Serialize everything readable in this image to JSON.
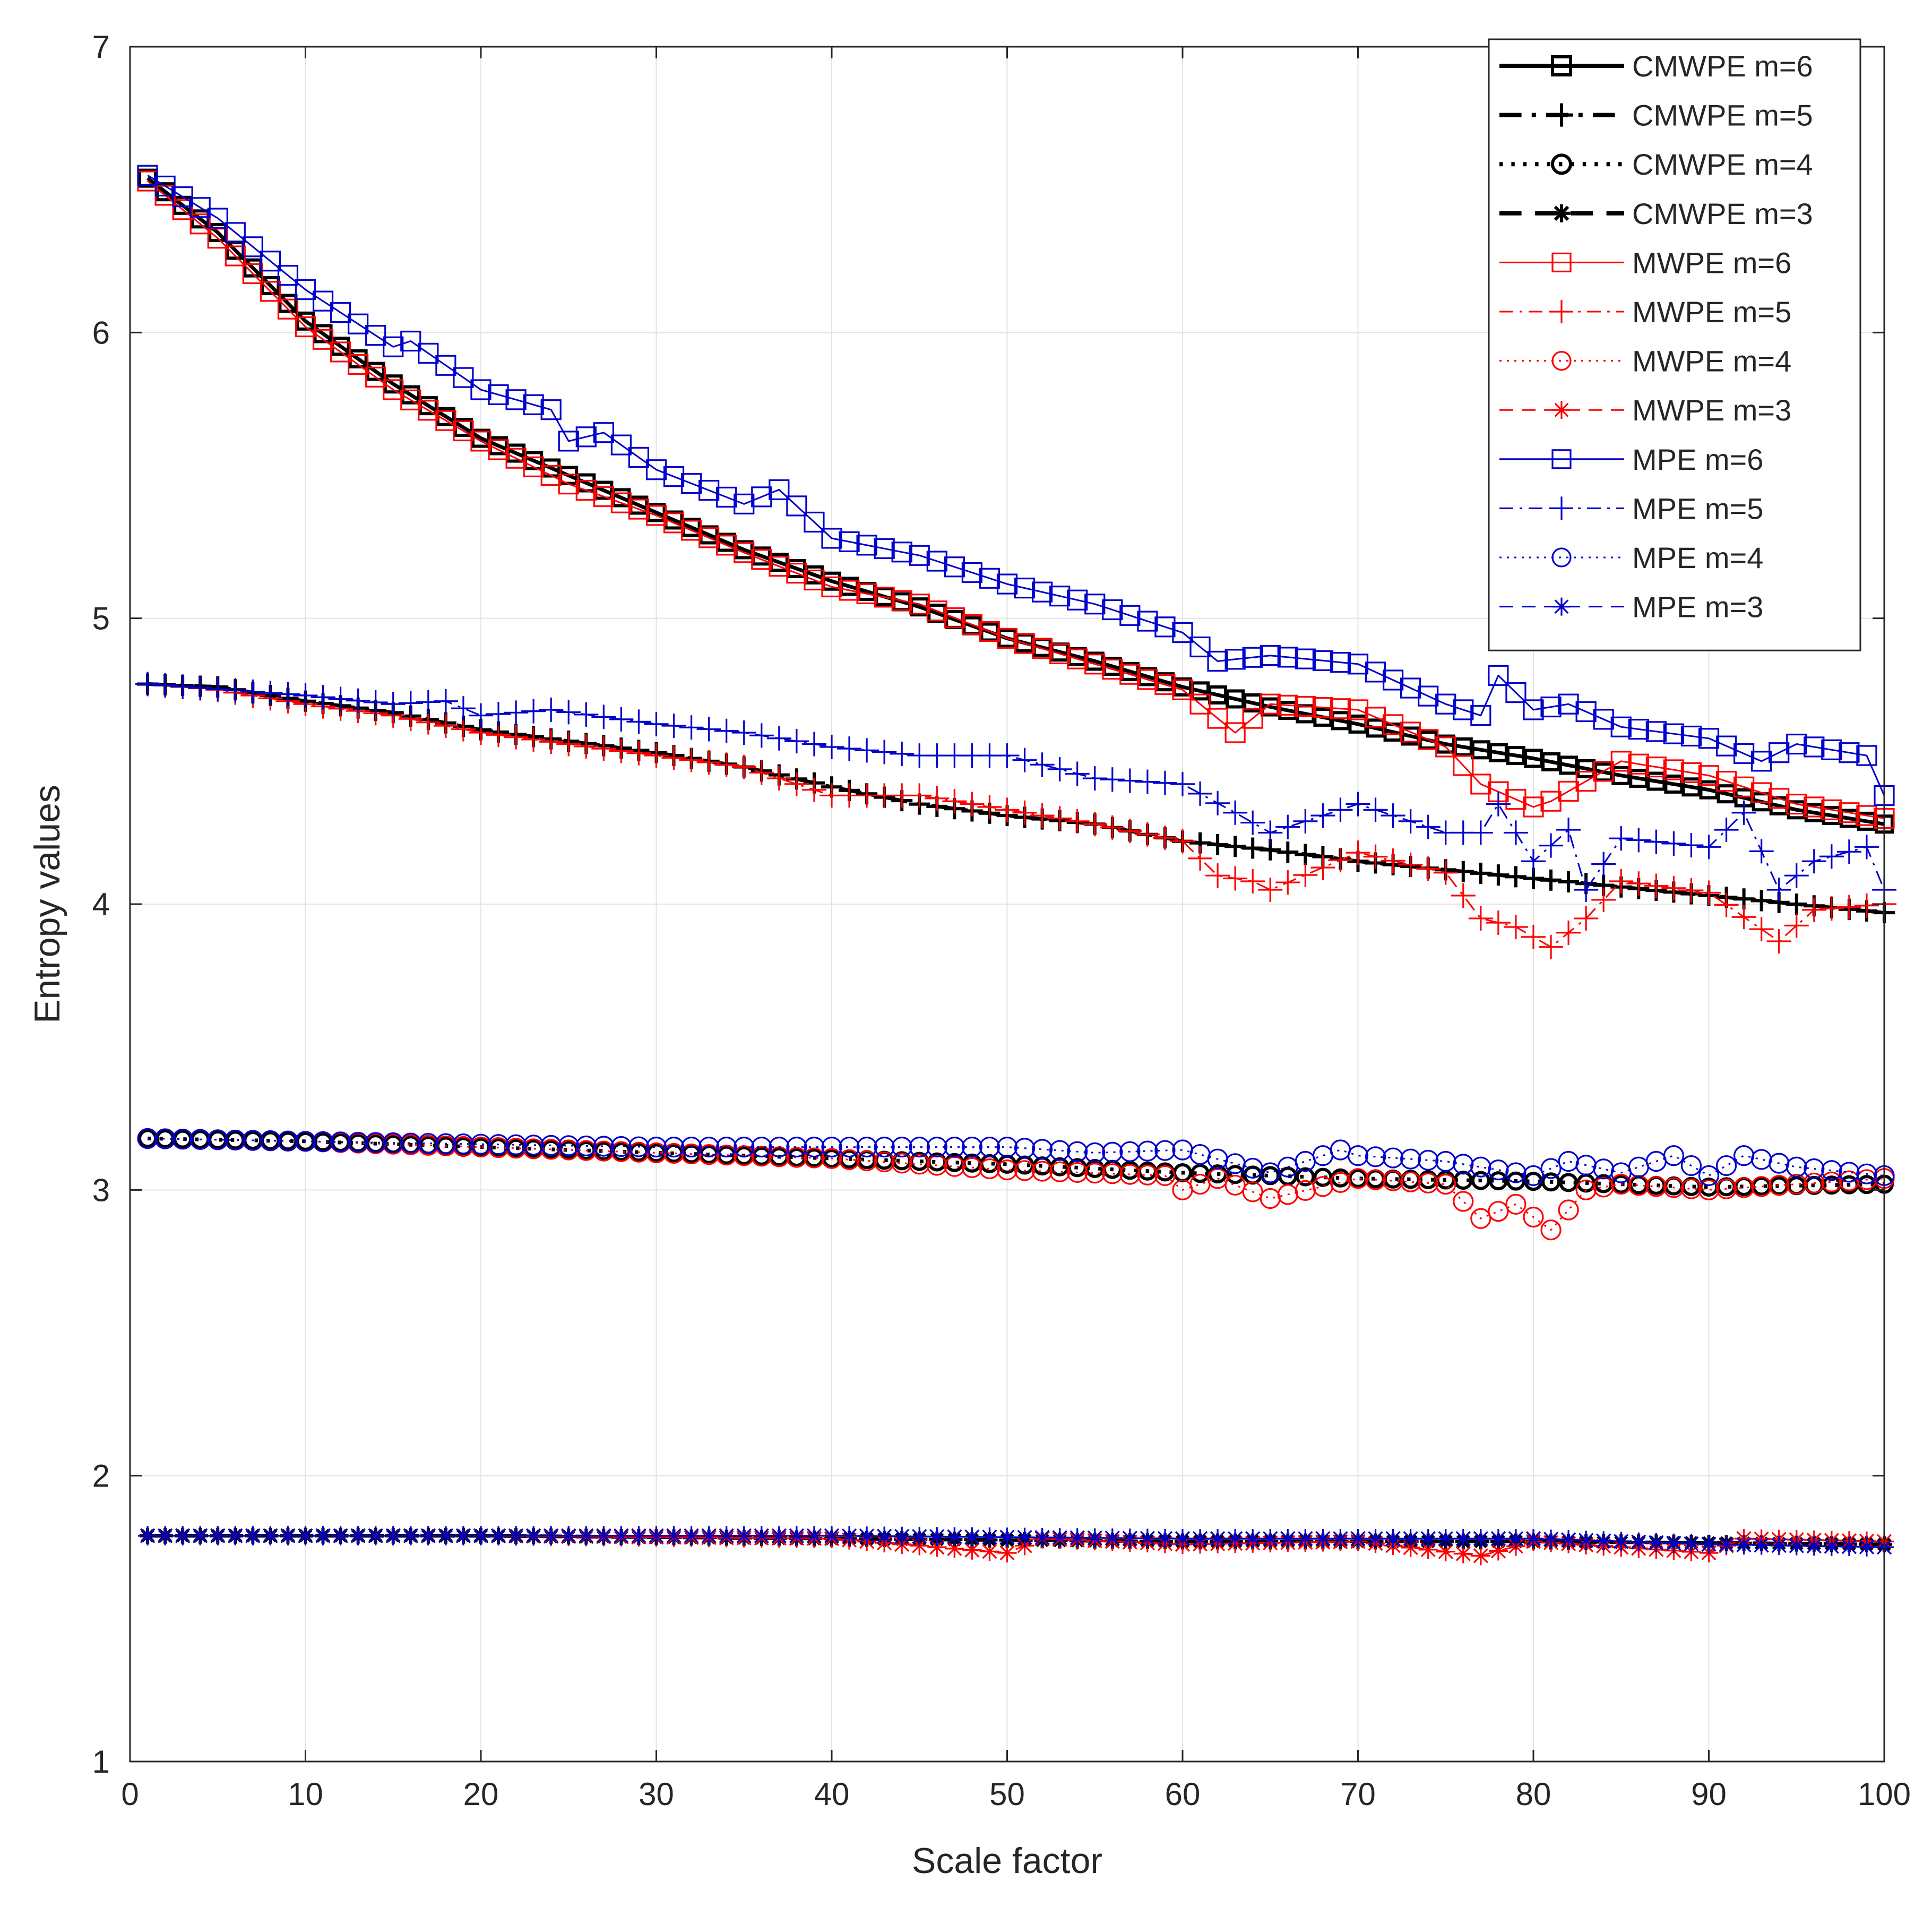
{
  "chart_data": {
    "type": "line",
    "title": "",
    "xlabel": "Scale factor",
    "ylabel": "Entropy values",
    "xlim": [
      0,
      100
    ],
    "ylim": [
      1,
      7
    ],
    "xticks": [
      0,
      10,
      20,
      30,
      40,
      50,
      60,
      70,
      80,
      90,
      100
    ],
    "yticks": [
      1,
      2,
      3,
      4,
      5,
      6,
      7
    ],
    "grid": true,
    "legend_position": "top-right",
    "x_range": {
      "start": 1,
      "end": 100,
      "step": 1
    },
    "series": [
      {
        "name": "CMWPE m=6",
        "color": "#000000",
        "line": "solid",
        "marker": "square",
        "weight": "bold",
        "anchors": [
          [
            1,
            6.54
          ],
          [
            5,
            6.35
          ],
          [
            10,
            6.04
          ],
          [
            15,
            5.82
          ],
          [
            20,
            5.63
          ],
          [
            25,
            5.5
          ],
          [
            30,
            5.37
          ],
          [
            35,
            5.24
          ],
          [
            40,
            5.13
          ],
          [
            45,
            5.04
          ],
          [
            50,
            4.93
          ],
          [
            55,
            4.85
          ],
          [
            60,
            4.76
          ],
          [
            65,
            4.69
          ],
          [
            70,
            4.63
          ],
          [
            75,
            4.56
          ],
          [
            80,
            4.51
          ],
          [
            85,
            4.45
          ],
          [
            90,
            4.4
          ],
          [
            95,
            4.33
          ],
          [
            100,
            4.28
          ]
        ]
      },
      {
        "name": "CMWPE m=5",
        "color": "#000000",
        "line": "dashdot",
        "marker": "plus",
        "weight": "bold",
        "anchors": [
          [
            1,
            4.77
          ],
          [
            5,
            4.76
          ],
          [
            10,
            4.71
          ],
          [
            15,
            4.67
          ],
          [
            20,
            4.61
          ],
          [
            25,
            4.57
          ],
          [
            30,
            4.53
          ],
          [
            35,
            4.48
          ],
          [
            40,
            4.41
          ],
          [
            45,
            4.35
          ],
          [
            50,
            4.31
          ],
          [
            55,
            4.28
          ],
          [
            60,
            4.22
          ],
          [
            65,
            4.19
          ],
          [
            70,
            4.15
          ],
          [
            75,
            4.12
          ],
          [
            80,
            4.09
          ],
          [
            85,
            4.06
          ],
          [
            90,
            4.03
          ],
          [
            95,
            4.0
          ],
          [
            100,
            3.97
          ]
        ]
      },
      {
        "name": "CMWPE m=4",
        "color": "#000000",
        "line": "dotted",
        "marker": "circle",
        "weight": "bold",
        "anchors": [
          [
            1,
            3.18
          ],
          [
            10,
            3.17
          ],
          [
            20,
            3.15
          ],
          [
            30,
            3.13
          ],
          [
            40,
            3.11
          ],
          [
            50,
            3.09
          ],
          [
            60,
            3.06
          ],
          [
            70,
            3.04
          ],
          [
            80,
            3.03
          ],
          [
            90,
            3.01
          ],
          [
            100,
            3.02
          ]
        ]
      },
      {
        "name": "CMWPE m=3",
        "color": "#000000",
        "line": "dashed",
        "marker": "star",
        "weight": "bold",
        "anchors": [
          [
            1,
            1.79
          ],
          [
            20,
            1.79
          ],
          [
            40,
            1.78
          ],
          [
            60,
            1.77
          ],
          [
            80,
            1.77
          ],
          [
            100,
            1.76
          ]
        ]
      },
      {
        "name": "MWPE m=6",
        "color": "#ff0000",
        "line": "solid",
        "marker": "square",
        "weight": "normal",
        "anchors": [
          [
            1,
            6.53
          ],
          [
            5,
            6.33
          ],
          [
            10,
            6.02
          ],
          [
            15,
            5.8
          ],
          [
            20,
            5.62
          ],
          [
            25,
            5.47
          ],
          [
            30,
            5.36
          ],
          [
            35,
            5.23
          ],
          [
            40,
            5.11
          ],
          [
            45,
            5.05
          ],
          [
            50,
            4.93
          ],
          [
            55,
            4.84
          ],
          [
            60,
            4.75
          ],
          [
            62,
            4.65
          ],
          [
            63,
            4.6
          ],
          [
            65,
            4.7
          ],
          [
            70,
            4.68
          ],
          [
            75,
            4.55
          ],
          [
            77,
            4.42
          ],
          [
            80,
            4.34
          ],
          [
            81,
            4.36
          ],
          [
            85,
            4.5
          ],
          [
            90,
            4.45
          ],
          [
            95,
            4.35
          ],
          [
            100,
            4.3
          ]
        ]
      },
      {
        "name": "MWPE m=5",
        "color": "#ff0000",
        "line": "dashdot",
        "marker": "plus",
        "weight": "normal",
        "anchors": [
          [
            1,
            4.77
          ],
          [
            5,
            4.75
          ],
          [
            10,
            4.7
          ],
          [
            15,
            4.66
          ],
          [
            20,
            4.6
          ],
          [
            25,
            4.56
          ],
          [
            30,
            4.52
          ],
          [
            35,
            4.48
          ],
          [
            40,
            4.38
          ],
          [
            45,
            4.38
          ],
          [
            50,
            4.33
          ],
          [
            55,
            4.28
          ],
          [
            60,
            4.22
          ],
          [
            62,
            4.1
          ],
          [
            64,
            4.08
          ],
          [
            65,
            4.05
          ],
          [
            70,
            4.18
          ],
          [
            75,
            4.11
          ],
          [
            77,
            3.95
          ],
          [
            79,
            3.92
          ],
          [
            81,
            3.85
          ],
          [
            83,
            3.95
          ],
          [
            85,
            4.08
          ],
          [
            90,
            4.04
          ],
          [
            94,
            3.87
          ],
          [
            96,
            3.98
          ],
          [
            100,
            4.0
          ]
        ]
      },
      {
        "name": "MWPE m=4",
        "color": "#ff0000",
        "line": "dotted",
        "marker": "circle",
        "weight": "normal",
        "anchors": [
          [
            1,
            3.18
          ],
          [
            10,
            3.17
          ],
          [
            20,
            3.15
          ],
          [
            30,
            3.13
          ],
          [
            40,
            3.11
          ],
          [
            50,
            3.07
          ],
          [
            59,
            3.05
          ],
          [
            60,
            3.0
          ],
          [
            62,
            3.04
          ],
          [
            65,
            2.97
          ],
          [
            70,
            3.04
          ],
          [
            75,
            3.02
          ],
          [
            77,
            2.9
          ],
          [
            79,
            2.95
          ],
          [
            81,
            2.86
          ],
          [
            83,
            3.0
          ],
          [
            85,
            3.02
          ],
          [
            90,
            3.0
          ],
          [
            100,
            3.04
          ]
        ]
      },
      {
        "name": "MWPE m=3",
        "color": "#ff0000",
        "line": "dashed",
        "marker": "star",
        "weight": "normal",
        "anchors": [
          [
            1,
            1.79
          ],
          [
            20,
            1.79
          ],
          [
            40,
            1.78
          ],
          [
            50,
            1.73
          ],
          [
            52,
            1.78
          ],
          [
            60,
            1.76
          ],
          [
            70,
            1.77
          ],
          [
            77,
            1.72
          ],
          [
            80,
            1.77
          ],
          [
            90,
            1.73
          ],
          [
            92,
            1.78
          ],
          [
            100,
            1.77
          ]
        ]
      },
      {
        "name": "MPE m=6",
        "color": "#0000cd",
        "line": "solid",
        "marker": "square",
        "weight": "normal",
        "anchors": [
          [
            1,
            6.55
          ],
          [
            5,
            6.4
          ],
          [
            10,
            6.15
          ],
          [
            15,
            5.95
          ],
          [
            16,
            5.97
          ],
          [
            20,
            5.8
          ],
          [
            24,
            5.73
          ],
          [
            25,
            5.62
          ],
          [
            27,
            5.65
          ],
          [
            30,
            5.52
          ],
          [
            35,
            5.4
          ],
          [
            37,
            5.45
          ],
          [
            40,
            5.28
          ],
          [
            45,
            5.22
          ],
          [
            50,
            5.12
          ],
          [
            55,
            5.05
          ],
          [
            60,
            4.95
          ],
          [
            62,
            4.85
          ],
          [
            65,
            4.87
          ],
          [
            70,
            4.84
          ],
          [
            75,
            4.7
          ],
          [
            77,
            4.66
          ],
          [
            78,
            4.8
          ],
          [
            80,
            4.68
          ],
          [
            82,
            4.7
          ],
          [
            85,
            4.62
          ],
          [
            90,
            4.58
          ],
          [
            93,
            4.5
          ],
          [
            95,
            4.56
          ],
          [
            99,
            4.52
          ],
          [
            100,
            4.38
          ]
        ]
      },
      {
        "name": "MPE m=5",
        "color": "#0000cd",
        "line": "dashdot",
        "marker": "plus",
        "weight": "normal",
        "anchors": [
          [
            1,
            4.77
          ],
          [
            10,
            4.73
          ],
          [
            15,
            4.7
          ],
          [
            18,
            4.71
          ],
          [
            20,
            4.66
          ],
          [
            24,
            4.68
          ],
          [
            30,
            4.63
          ],
          [
            35,
            4.6
          ],
          [
            40,
            4.55
          ],
          [
            45,
            4.52
          ],
          [
            50,
            4.52
          ],
          [
            55,
            4.44
          ],
          [
            60,
            4.42
          ],
          [
            63,
            4.32
          ],
          [
            65,
            4.25
          ],
          [
            70,
            4.35
          ],
          [
            75,
            4.25
          ],
          [
            77,
            4.25
          ],
          [
            78,
            4.35
          ],
          [
            80,
            4.15
          ],
          [
            82,
            4.26
          ],
          [
            83,
            4.05
          ],
          [
            85,
            4.23
          ],
          [
            90,
            4.2
          ],
          [
            92,
            4.32
          ],
          [
            94,
            4.05
          ],
          [
            96,
            4.15
          ],
          [
            99,
            4.2
          ],
          [
            100,
            4.05
          ]
        ]
      },
      {
        "name": "MPE m=4",
        "color": "#0000cd",
        "line": "dotted",
        "marker": "circle",
        "weight": "normal",
        "anchors": [
          [
            1,
            3.18
          ],
          [
            10,
            3.17
          ],
          [
            20,
            3.16
          ],
          [
            30,
            3.15
          ],
          [
            40,
            3.15
          ],
          [
            46,
            3.15
          ],
          [
            50,
            3.15
          ],
          [
            55,
            3.13
          ],
          [
            60,
            3.14
          ],
          [
            65,
            3.06
          ],
          [
            69,
            3.14
          ],
          [
            70,
            3.12
          ],
          [
            75,
            3.1
          ],
          [
            80,
            3.05
          ],
          [
            82,
            3.1
          ],
          [
            85,
            3.06
          ],
          [
            88,
            3.12
          ],
          [
            90,
            3.05
          ],
          [
            92,
            3.12
          ],
          [
            95,
            3.08
          ],
          [
            100,
            3.05
          ]
        ]
      },
      {
        "name": "MPE m=3",
        "color": "#0000cd",
        "line": "dashed",
        "marker": "star",
        "weight": "normal",
        "anchors": [
          [
            1,
            1.79
          ],
          [
            20,
            1.79
          ],
          [
            40,
            1.79
          ],
          [
            60,
            1.78
          ],
          [
            80,
            1.78
          ],
          [
            90,
            1.76
          ],
          [
            100,
            1.75
          ]
        ]
      }
    ]
  }
}
